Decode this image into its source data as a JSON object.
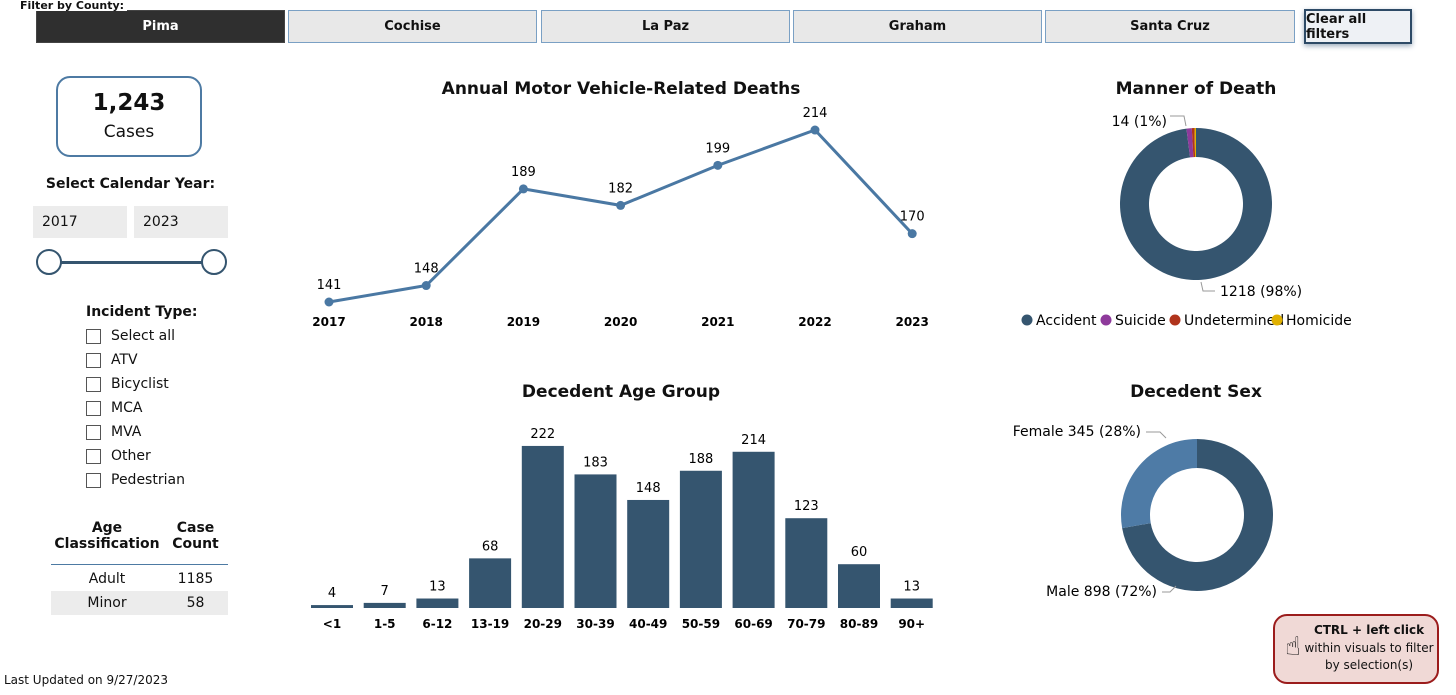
{
  "filter": {
    "label": "Filter by County:",
    "counties": [
      "Pima",
      "Cochise",
      "La Paz",
      "Graham",
      "Santa Cruz"
    ],
    "selected": "Pima",
    "clear_label": "Clear all filters"
  },
  "cases": {
    "value": "1,243",
    "label": "Cases"
  },
  "year": {
    "label": "Select Calendar Year:",
    "from": "2017",
    "to": "2023"
  },
  "incident": {
    "label": "Incident Type:",
    "options": [
      "Select all",
      "ATV",
      "Bicyclist",
      "MCA",
      "MVA",
      "Other",
      "Pedestrian"
    ]
  },
  "age_table": {
    "headers": [
      [
        "Age",
        "Classification"
      ],
      [
        "Case",
        "Count"
      ]
    ],
    "rows": [
      [
        "Adult",
        "1185"
      ],
      [
        "Minor",
        "58"
      ]
    ]
  },
  "last_updated": "Last Updated on 9/27/2023",
  "tip": {
    "bold": "CTRL + left click",
    "line2": "within visuals to filter",
    "line3": "by selection(s)"
  },
  "colors": {
    "primary": "#35556f",
    "line": "#4a78a3",
    "suicide": "#8e3a9b",
    "undetermined": "#b0341c",
    "homicide": "#e0b000",
    "female": "#4e7ba6"
  },
  "chart_data": [
    {
      "type": "line",
      "title": "Annual Motor Vehicle-Related Deaths",
      "x": [
        "2017",
        "2018",
        "2019",
        "2020",
        "2021",
        "2022",
        "2023"
      ],
      "values": [
        141,
        148,
        189,
        182,
        199,
        214,
        170
      ]
    },
    {
      "type": "bar",
      "title": "Decedent Age Group",
      "categories": [
        "<1",
        "1-5",
        "6-12",
        "13-19",
        "20-29",
        "30-39",
        "40-49",
        "50-59",
        "60-69",
        "70-79",
        "80-89",
        "90+"
      ],
      "values": [
        4,
        7,
        13,
        68,
        222,
        183,
        148,
        188,
        214,
        123,
        60,
        13
      ]
    },
    {
      "type": "pie",
      "title": "Manner of Death",
      "slices": [
        {
          "name": "Accident",
          "value": 1218,
          "label": "1218 (98%)"
        },
        {
          "name": "Suicide",
          "value": 14,
          "label": "14 (1%)"
        },
        {
          "name": "Undetermined",
          "value": 7
        },
        {
          "name": "Homicide",
          "value": 4
        }
      ]
    },
    {
      "type": "pie",
      "title": "Decedent Sex",
      "slices": [
        {
          "name": "Male",
          "value": 898,
          "label": "Male 898 (72%)"
        },
        {
          "name": "Female",
          "value": 345,
          "label": "Female 345 (28%)"
        }
      ]
    }
  ]
}
